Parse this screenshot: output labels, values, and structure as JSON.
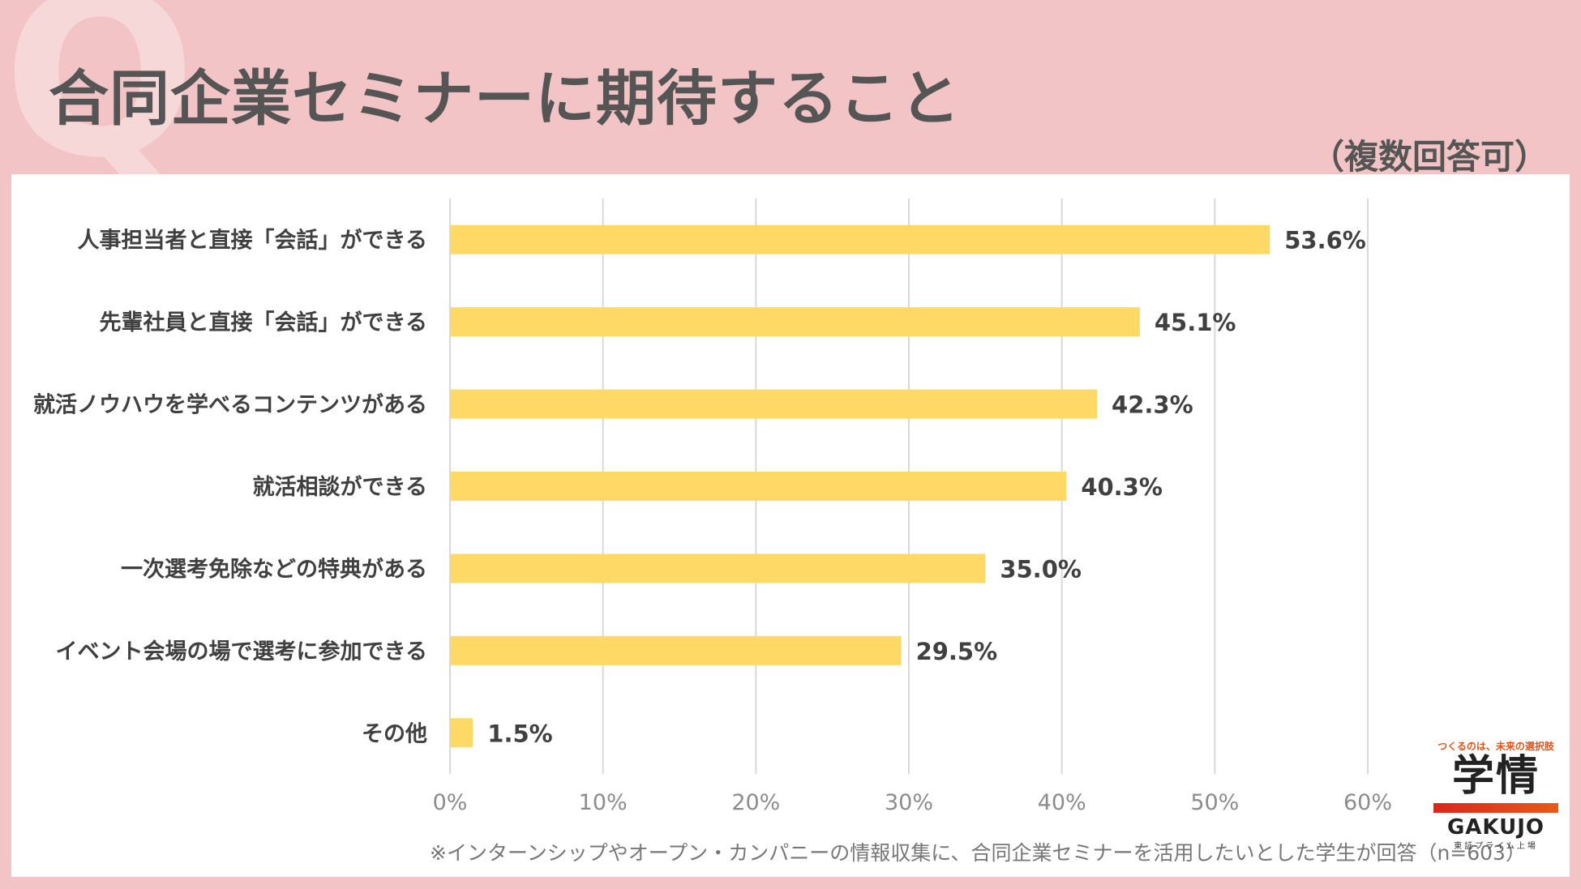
{
  "header": {
    "watermark": "Q",
    "title": "合同企業セミナーに期待すること",
    "subtitle": "（複数回答可）"
  },
  "chart_data": {
    "type": "bar",
    "orientation": "horizontal",
    "categories": [
      "人事担当者と直接「会話」ができる",
      "先輩社員と直接「会話」ができる",
      "就活ノウハウを学べるコンテンツがある",
      "就活相談ができる",
      "一次選考免除などの特典がある",
      "イベント会場の場で選考に参加できる",
      "その他"
    ],
    "values": [
      53.6,
      45.1,
      42.3,
      40.3,
      35.0,
      29.5,
      1.5
    ],
    "value_labels": [
      "53.6%",
      "45.1%",
      "42.3%",
      "40.3%",
      "35.0%",
      "29.5%",
      "1.5%"
    ],
    "xlim": [
      0,
      60
    ],
    "x_ticks": [
      "0%",
      "10%",
      "20%",
      "30%",
      "40%",
      "50%",
      "60%"
    ],
    "grid": true,
    "bar_color": "#ffd966"
  },
  "footnote": "※インターンシップやオープン・カンパニーの情報収集に、合同企業セミナーを活用したいとした学生が回答（n=603）",
  "logo": {
    "tagline": "つくるのは、未来の選択肢",
    "mark": "学情",
    "name": "GAKUJO",
    "sub": "東証プライム上場"
  },
  "colors": {
    "background": "#f2c4c5",
    "title_text": "#555555",
    "bar": "#ffd966",
    "grid": "#d9d9d9"
  }
}
